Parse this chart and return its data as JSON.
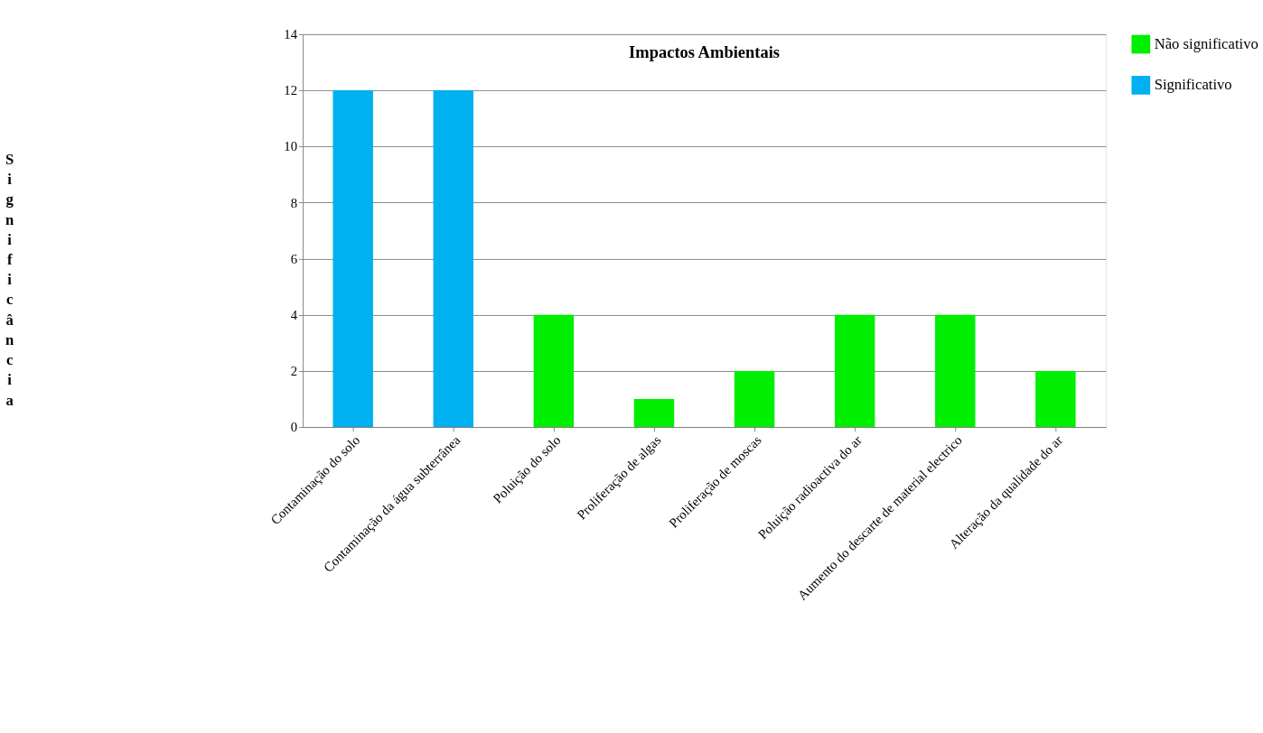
{
  "chart_data": {
    "type": "bar",
    "title": "Impactos Ambientais",
    "ylabel": "Significância",
    "categories": [
      "Contaminação do solo",
      "Contaminação da água subterrânea",
      "Poluição do solo",
      "Proliferação de algas",
      "Proliferação de moscas",
      "Poluição radioactiva do ar",
      "Aumento do descarte de material electrico",
      "Alteração da qualidade do ar"
    ],
    "series": [
      {
        "name": "Não significativo",
        "color": "#00ee00",
        "values": [
          null,
          null,
          4,
          1,
          2,
          4,
          4,
          2
        ]
      },
      {
        "name": "Significativo",
        "color": "#00b0f0",
        "values": [
          12,
          12,
          null,
          null,
          null,
          null,
          null,
          null
        ]
      }
    ],
    "ylim": [
      0,
      14
    ],
    "yticks": [
      0,
      2,
      4,
      6,
      8,
      10,
      12,
      14
    ],
    "grid": "y",
    "legend": "right"
  }
}
